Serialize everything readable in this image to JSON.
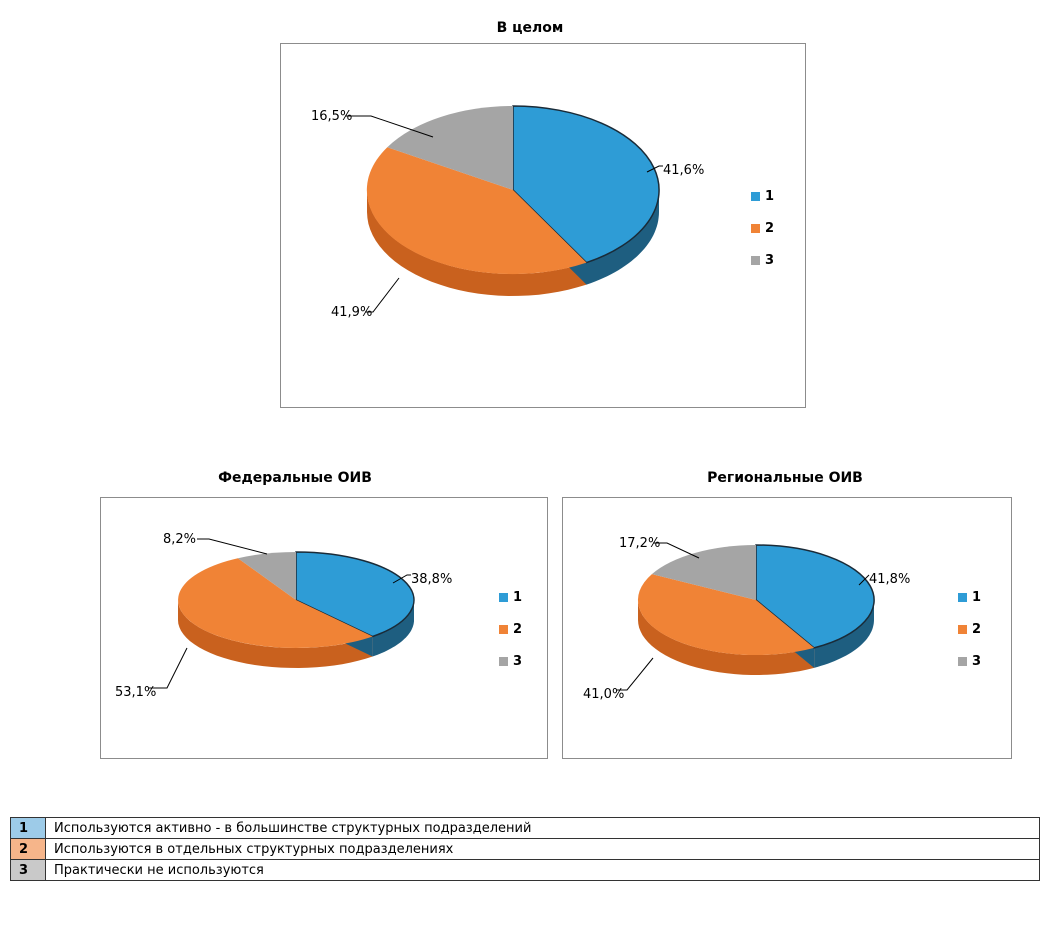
{
  "colors": {
    "c1": "#2e9cd6",
    "c2": "#f08336",
    "c3": "#a5a5a5",
    "c1_side": "#1e5e80",
    "c2_side": "#c9611e",
    "c3_side": "#7c7c7c",
    "row1_bg": "#9dcbe8",
    "row2_bg": "#f6b58a",
    "row3_bg": "#c9c9c9"
  },
  "chart_data": [
    {
      "type": "pie",
      "title": "В целом",
      "categories": [
        "1",
        "2",
        "3"
      ],
      "values": [
        41.6,
        41.9,
        16.5
      ],
      "labels": [
        "41,6%",
        "41,9%",
        "16,5%"
      ],
      "legend_position": "right"
    },
    {
      "type": "pie",
      "title": "Федеральные ОИВ",
      "categories": [
        "1",
        "2",
        "3"
      ],
      "values": [
        38.8,
        53.1,
        8.2
      ],
      "labels": [
        "38,8%",
        "53,1%",
        "8,2%"
      ],
      "legend_position": "right"
    },
    {
      "type": "pie",
      "title": "Региональные ОИВ",
      "categories": [
        "1",
        "2",
        "3"
      ],
      "values": [
        41.8,
        41.0,
        17.2
      ],
      "labels": [
        "41,8%",
        "41,0%",
        "17,2%"
      ],
      "legend_position": "right"
    }
  ],
  "legend_table": [
    {
      "code": "1",
      "text": "Используются активно - в большинстве структурных подразделений"
    },
    {
      "code": "2",
      "text": "Используются в отдельных структурных подразделениях"
    },
    {
      "code": "3",
      "text": "Практически не используются"
    }
  ]
}
